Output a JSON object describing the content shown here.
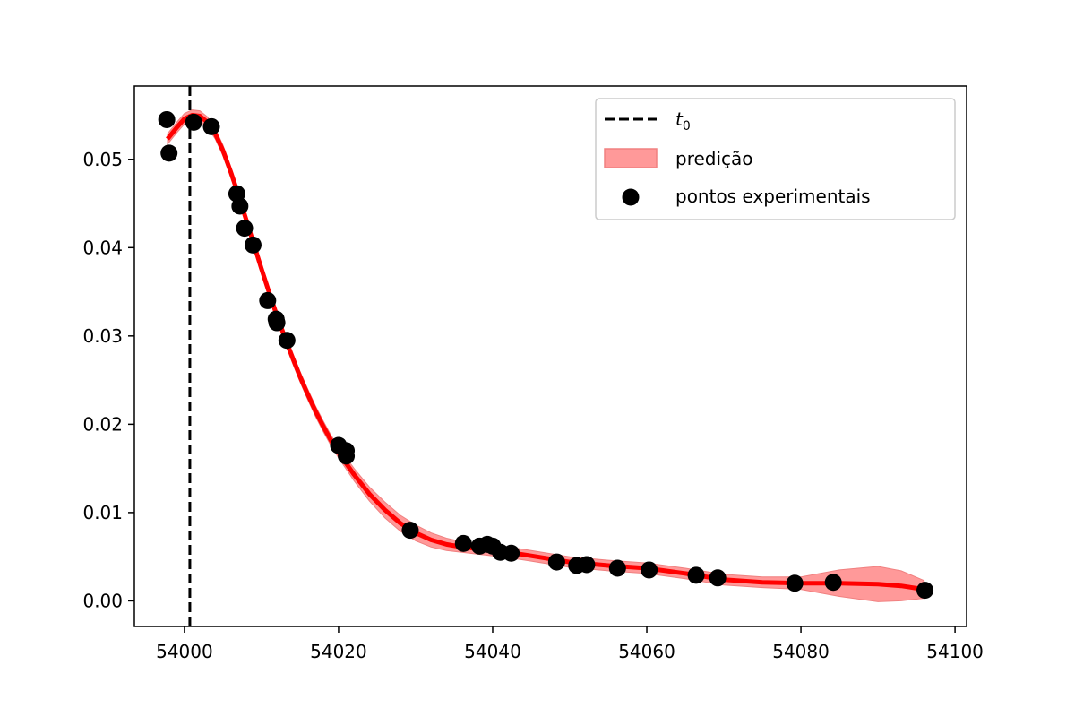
{
  "chart_data": {
    "type": "line",
    "title": "",
    "xlabel": "",
    "ylabel": "",
    "xlim": [
      53993.5,
      54101.5
    ],
    "ylim": [
      -0.0029,
      0.0583
    ],
    "xticks": [
      54000,
      54020,
      54040,
      54060,
      54080,
      54100
    ],
    "xtick_labels": [
      "54000",
      "54020",
      "54040",
      "54060",
      "54080",
      "54100"
    ],
    "yticks": [
      0.0,
      0.01,
      0.02,
      0.03,
      0.04,
      0.05
    ],
    "ytick_labels": [
      "0.00",
      "0.01",
      "0.02",
      "0.03",
      "0.04",
      "0.05"
    ],
    "grid": false,
    "legend_position": "top-right",
    "legend": [
      {
        "label_prefix": "t",
        "label_sub": "0",
        "style": "dashed-line"
      },
      {
        "label": "predição",
        "style": "filled-band"
      },
      {
        "label": "pontos experimentais",
        "style": "marker"
      }
    ],
    "t0": 54000.7,
    "colors": {
      "prediction": "#ff0000",
      "band": "#ff6e6e",
      "points": "#000000",
      "t0_line": "#000000"
    },
    "series": [
      {
        "name": "predição",
        "x": [
          53997.8,
          53999,
          54000,
          54001,
          54002,
          54003,
          54004,
          54005,
          54006,
          54007,
          54008,
          54009,
          54010,
          54011,
          54012,
          54013,
          54014,
          54015,
          54016,
          54017,
          54018,
          54019,
          54020,
          54022,
          54024,
          54026,
          54028,
          54030,
          54032,
          54034,
          54036,
          54038,
          54040,
          54042,
          54045,
          54050,
          54055,
          54060,
          54065,
          54070,
          54075,
          54080,
          54085,
          54090,
          54093,
          54096
        ],
        "y": [
          0.0523,
          0.0536,
          0.0546,
          0.055,
          0.0549,
          0.0542,
          0.0529,
          0.051,
          0.0486,
          0.046,
          0.0432,
          0.0404,
          0.0376,
          0.0349,
          0.0323,
          0.0299,
          0.0276,
          0.0254,
          0.0234,
          0.0215,
          0.0198,
          0.0182,
          0.0168,
          0.0143,
          0.0121,
          0.0103,
          0.0088,
          0.0077,
          0.0069,
          0.0064,
          0.0061,
          0.0059,
          0.0057,
          0.0055,
          0.0051,
          0.0044,
          0.004,
          0.0037,
          0.0031,
          0.0024,
          0.0021,
          0.002,
          0.002,
          0.0019,
          0.0017,
          0.0013
        ],
        "band_halfwidth": [
          0.0006,
          0.0006,
          0.0006,
          0.0006,
          0.0006,
          0.0006,
          0.0006,
          0.0006,
          0.0006,
          0.0006,
          0.0006,
          0.0006,
          0.0006,
          0.0006,
          0.0006,
          0.0006,
          0.0006,
          0.0006,
          0.0006,
          0.0006,
          0.0006,
          0.0006,
          0.0006,
          0.0007,
          0.0008,
          0.0009,
          0.0009,
          0.0009,
          0.0008,
          0.0007,
          0.0006,
          0.0006,
          0.0006,
          0.0006,
          0.0006,
          0.0006,
          0.0006,
          0.0006,
          0.0006,
          0.0006,
          0.0006,
          0.0007,
          0.0015,
          0.002,
          0.0017,
          0.001
        ]
      },
      {
        "name": "pontos experimentais",
        "points": [
          [
            53997.7,
            0.0545
          ],
          [
            53998.0,
            0.0507
          ],
          [
            54001.2,
            0.0542
          ],
          [
            54003.5,
            0.0537
          ],
          [
            54006.8,
            0.0461
          ],
          [
            54007.2,
            0.0447
          ],
          [
            54007.8,
            0.0422
          ],
          [
            54008.9,
            0.0403
          ],
          [
            54010.8,
            0.034
          ],
          [
            54011.9,
            0.0319
          ],
          [
            54012.0,
            0.0315
          ],
          [
            54013.3,
            0.0295
          ],
          [
            54020.0,
            0.0176
          ],
          [
            54021.0,
            0.017
          ],
          [
            54021.0,
            0.0164
          ],
          [
            54029.3,
            0.008
          ],
          [
            54036.2,
            0.0065
          ],
          [
            54038.3,
            0.0062
          ],
          [
            54039.3,
            0.0064
          ],
          [
            54040.0,
            0.0062
          ],
          [
            54041.0,
            0.0055
          ],
          [
            54042.4,
            0.0054
          ],
          [
            54048.3,
            0.0044
          ],
          [
            54050.9,
            0.004
          ],
          [
            54052.2,
            0.0041
          ],
          [
            54056.2,
            0.0037
          ],
          [
            54060.3,
            0.0035
          ],
          [
            54066.4,
            0.0029
          ],
          [
            54069.2,
            0.0026
          ],
          [
            54079.2,
            0.002
          ],
          [
            54084.2,
            0.0021
          ],
          [
            54096.1,
            0.0012
          ]
        ]
      }
    ]
  }
}
